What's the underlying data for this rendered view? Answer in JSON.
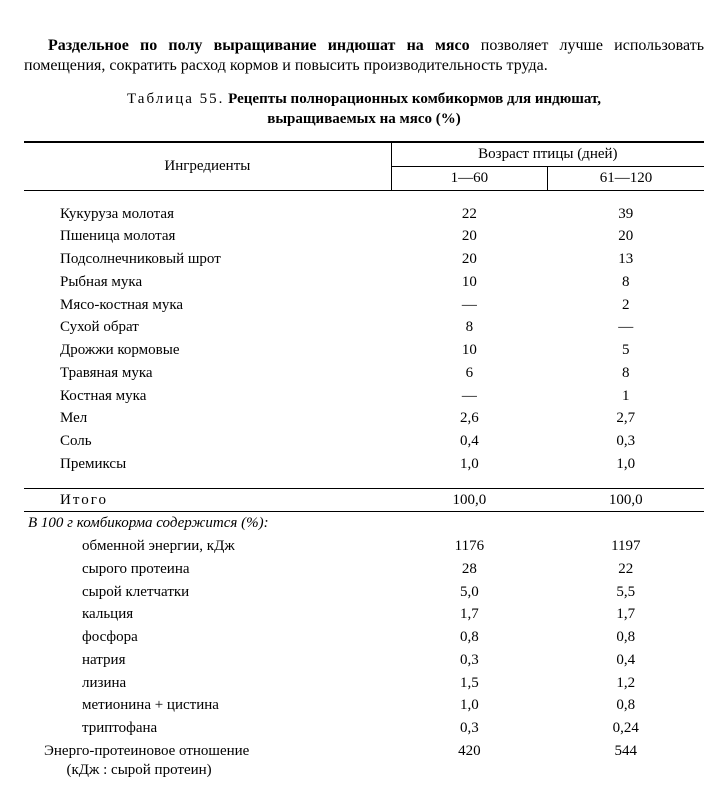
{
  "intro": {
    "bold": "Раздельное по полу выращивание индюшат на мясо",
    "rest": " позволяет лучше использовать помещения, сократить расход кормов и повысить производительность труда."
  },
  "caption": {
    "prefix": "Таблица 55.",
    "title_line1": "Рецепты полнорационных комбикормов для индюшат,",
    "title_line2": "выращиваемых на мясо (%)"
  },
  "headers": {
    "ingredients": "Ингредиенты",
    "age_group": "Возраст птицы (дней)",
    "col1": "1—60",
    "col2": "61—120"
  },
  "ingredients": [
    {
      "name": "Кукуруза молотая",
      "v1": "22",
      "v2": "39"
    },
    {
      "name": "Пшеница молотая",
      "v1": "20",
      "v2": "20"
    },
    {
      "name": "Подсолнечниковый шрот",
      "v1": "20",
      "v2": "13"
    },
    {
      "name": "Рыбная мука",
      "v1": "10",
      "v2": "8"
    },
    {
      "name": "Мясо-костная мука",
      "v1": "—",
      "v2": "2"
    },
    {
      "name": "Сухой обрат",
      "v1": "8",
      "v2": "—"
    },
    {
      "name": "Дрожжи кормовые",
      "v1": "10",
      "v2": "5"
    },
    {
      "name": "Травяная мука",
      "v1": "6",
      "v2": "8"
    },
    {
      "name": "Костная мука",
      "v1": "—",
      "v2": "1"
    },
    {
      "name": "Мел",
      "v1": "2,6",
      "v2": "2,7"
    },
    {
      "name": "Соль",
      "v1": "0,4",
      "v2": "0,3"
    },
    {
      "name": "Премиксы",
      "v1": "1,0",
      "v2": "1,0"
    }
  ],
  "total": {
    "label": "Итого",
    "v1": "100,0",
    "v2": "100,0"
  },
  "nutrition_header": "В 100 г комбикорма содержится (%):",
  "nutrition": [
    {
      "name": "обменной энергии, кДж",
      "v1": "1176",
      "v2": "1197"
    },
    {
      "name": "сырого протеина",
      "v1": "28",
      "v2": "22"
    },
    {
      "name": "сырой клетчатки",
      "v1": "5,0",
      "v2": "5,5"
    },
    {
      "name": "кальция",
      "v1": "1,7",
      "v2": "1,7"
    },
    {
      "name": "фосфора",
      "v1": "0,8",
      "v2": "0,8"
    },
    {
      "name": "натрия",
      "v1": "0,3",
      "v2": "0,4"
    },
    {
      "name": "лизина",
      "v1": "1,5",
      "v2": "1,2"
    },
    {
      "name": "метионина + цистина",
      "v1": "1,0",
      "v2": "0,8"
    },
    {
      "name": "триптофана",
      "v1": "0,3",
      "v2": "0,24"
    }
  ],
  "ratio": {
    "name": "Энерго-протеиновое отношение",
    "sub": "(кДж : сырой протеин)",
    "v1": "420",
    "v2": "544"
  }
}
